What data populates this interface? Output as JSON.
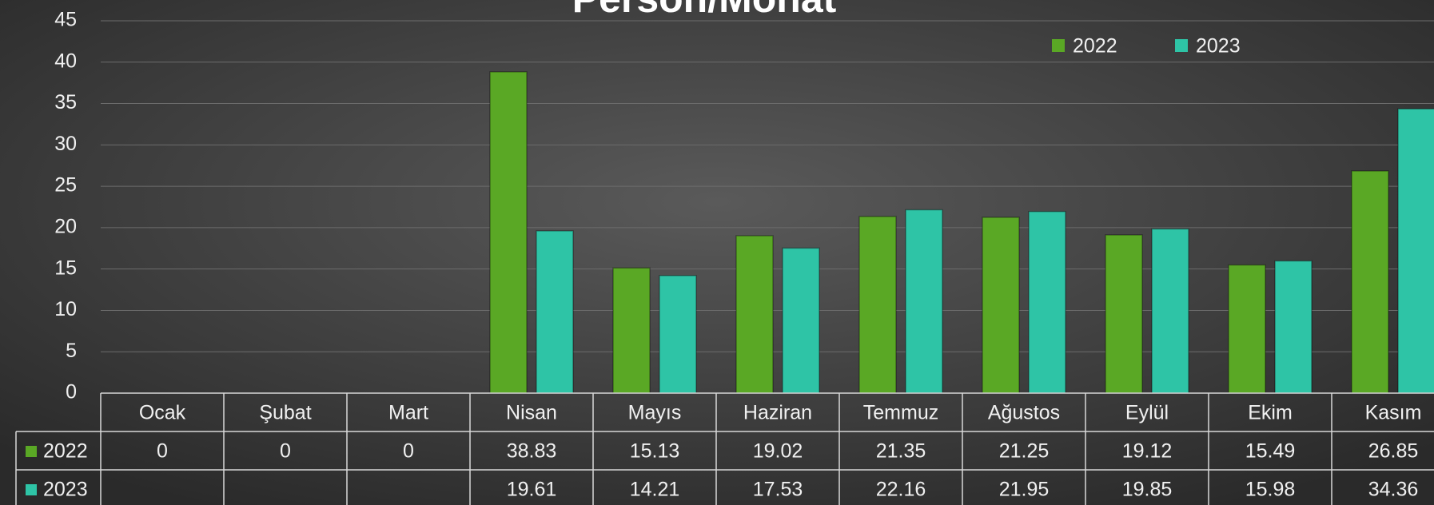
{
  "chart_data": {
    "type": "bar",
    "title": "Person/Monat",
    "categories": [
      "Ocak",
      "Şubat",
      "Mart",
      "Nisan",
      "Mayıs",
      "Haziran",
      "Temmuz",
      "Ağustos",
      "Eylül",
      "Ekim",
      "Kasım"
    ],
    "series": [
      {
        "name": "2022",
        "color": "#5aa825",
        "values": [
          0,
          0,
          0,
          38.83,
          15.13,
          19.02,
          21.35,
          21.25,
          19.12,
          15.49,
          26.85
        ]
      },
      {
        "name": "2023",
        "color": "#2ec4a6",
        "values": [
          null,
          null,
          null,
          19.61,
          14.21,
          17.53,
          22.16,
          21.95,
          19.85,
          15.98,
          34.36
        ]
      }
    ],
    "ylim": [
      0,
      45
    ],
    "yticks": [
      0,
      5,
      10,
      15,
      20,
      25,
      30,
      35,
      40,
      45
    ],
    "grid": true,
    "legend": "top-right",
    "data_table": true
  }
}
